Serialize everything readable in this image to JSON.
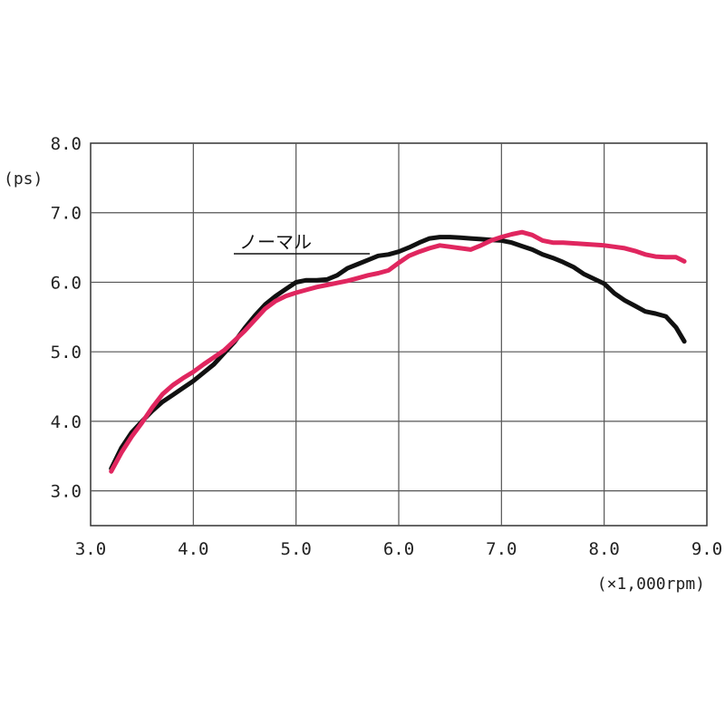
{
  "chart_data": {
    "type": "line",
    "title": "",
    "xlabel": "(×1,000rpm)",
    "ylabel": "(ps)",
    "xlim": [
      3.0,
      9.0
    ],
    "ylim": [
      2.5,
      8.0
    ],
    "grid": true,
    "x_ticks": [
      3.0,
      4.0,
      5.0,
      6.0,
      7.0,
      8.0,
      9.0
    ],
    "x_tick_labels": [
      "3.0",
      "4.0",
      "5.0",
      "6.0",
      "7.0",
      "8.0",
      "9.0"
    ],
    "y_ticks": [
      3.0,
      4.0,
      5.0,
      6.0,
      7.0,
      8.0
    ],
    "y_tick_labels": [
      "3.0",
      "4.0",
      "5.0",
      "6.0",
      "7.0",
      "8.0"
    ],
    "series": [
      {
        "name": "ノーマル",
        "color": "#111111",
        "points": [
          [
            3.2,
            3.32
          ],
          [
            3.3,
            3.62
          ],
          [
            3.4,
            3.84
          ],
          [
            3.5,
            4.0
          ],
          [
            3.6,
            4.15
          ],
          [
            3.7,
            4.28
          ],
          [
            3.8,
            4.38
          ],
          [
            3.9,
            4.48
          ],
          [
            4.0,
            4.58
          ],
          [
            4.1,
            4.7
          ],
          [
            4.2,
            4.82
          ],
          [
            4.3,
            4.98
          ],
          [
            4.4,
            5.14
          ],
          [
            4.5,
            5.34
          ],
          [
            4.6,
            5.52
          ],
          [
            4.7,
            5.68
          ],
          [
            4.8,
            5.8
          ],
          [
            4.9,
            5.9
          ],
          [
            5.0,
            6.0
          ],
          [
            5.1,
            6.03
          ],
          [
            5.2,
            6.03
          ],
          [
            5.3,
            6.04
          ],
          [
            5.4,
            6.1
          ],
          [
            5.5,
            6.2
          ],
          [
            5.6,
            6.26
          ],
          [
            5.7,
            6.32
          ],
          [
            5.8,
            6.38
          ],
          [
            5.9,
            6.4
          ],
          [
            6.0,
            6.44
          ],
          [
            6.1,
            6.5
          ],
          [
            6.2,
            6.57
          ],
          [
            6.3,
            6.63
          ],
          [
            6.4,
            6.65
          ],
          [
            6.5,
            6.65
          ],
          [
            6.6,
            6.64
          ],
          [
            6.7,
            6.63
          ],
          [
            6.8,
            6.62
          ],
          [
            6.9,
            6.61
          ],
          [
            7.0,
            6.6
          ],
          [
            7.1,
            6.57
          ],
          [
            7.2,
            6.52
          ],
          [
            7.3,
            6.47
          ],
          [
            7.4,
            6.4
          ],
          [
            7.5,
            6.35
          ],
          [
            7.6,
            6.29
          ],
          [
            7.7,
            6.22
          ],
          [
            7.8,
            6.12
          ],
          [
            7.9,
            6.05
          ],
          [
            8.0,
            5.98
          ],
          [
            8.1,
            5.84
          ],
          [
            8.2,
            5.74
          ],
          [
            8.3,
            5.66
          ],
          [
            8.4,
            5.58
          ],
          [
            8.5,
            5.55
          ],
          [
            8.6,
            5.51
          ],
          [
            8.7,
            5.35
          ],
          [
            8.78,
            5.15
          ]
        ]
      },
      {
        "name": "",
        "color": "#e0265f",
        "points": [
          [
            3.2,
            3.28
          ],
          [
            3.3,
            3.55
          ],
          [
            3.4,
            3.78
          ],
          [
            3.5,
            3.98
          ],
          [
            3.6,
            4.2
          ],
          [
            3.7,
            4.39
          ],
          [
            3.8,
            4.52
          ],
          [
            3.9,
            4.62
          ],
          [
            4.0,
            4.71
          ],
          [
            4.1,
            4.82
          ],
          [
            4.2,
            4.92
          ],
          [
            4.3,
            5.02
          ],
          [
            4.4,
            5.16
          ],
          [
            4.5,
            5.3
          ],
          [
            4.6,
            5.46
          ],
          [
            4.7,
            5.62
          ],
          [
            4.8,
            5.73
          ],
          [
            4.9,
            5.8
          ],
          [
            5.0,
            5.85
          ],
          [
            5.1,
            5.89
          ],
          [
            5.2,
            5.93
          ],
          [
            5.3,
            5.96
          ],
          [
            5.4,
            5.99
          ],
          [
            5.5,
            6.02
          ],
          [
            5.6,
            6.06
          ],
          [
            5.7,
            6.1
          ],
          [
            5.8,
            6.13
          ],
          [
            5.9,
            6.17
          ],
          [
            6.0,
            6.28
          ],
          [
            6.1,
            6.38
          ],
          [
            6.2,
            6.44
          ],
          [
            6.3,
            6.49
          ],
          [
            6.4,
            6.53
          ],
          [
            6.5,
            6.51
          ],
          [
            6.6,
            6.49
          ],
          [
            6.7,
            6.47
          ],
          [
            6.8,
            6.53
          ],
          [
            6.9,
            6.6
          ],
          [
            7.0,
            6.65
          ],
          [
            7.1,
            6.69
          ],
          [
            7.2,
            6.72
          ],
          [
            7.3,
            6.68
          ],
          [
            7.4,
            6.6
          ],
          [
            7.5,
            6.57
          ],
          [
            7.6,
            6.57
          ],
          [
            7.7,
            6.56
          ],
          [
            7.8,
            6.55
          ],
          [
            7.9,
            6.54
          ],
          [
            8.0,
            6.53
          ],
          [
            8.1,
            6.51
          ],
          [
            8.2,
            6.49
          ],
          [
            8.3,
            6.45
          ],
          [
            8.4,
            6.4
          ],
          [
            8.5,
            6.37
          ],
          [
            8.6,
            6.36
          ],
          [
            8.7,
            6.36
          ],
          [
            8.78,
            6.3
          ]
        ]
      }
    ],
    "annotations": [
      {
        "text": "ノーマル",
        "series": 0
      }
    ]
  }
}
